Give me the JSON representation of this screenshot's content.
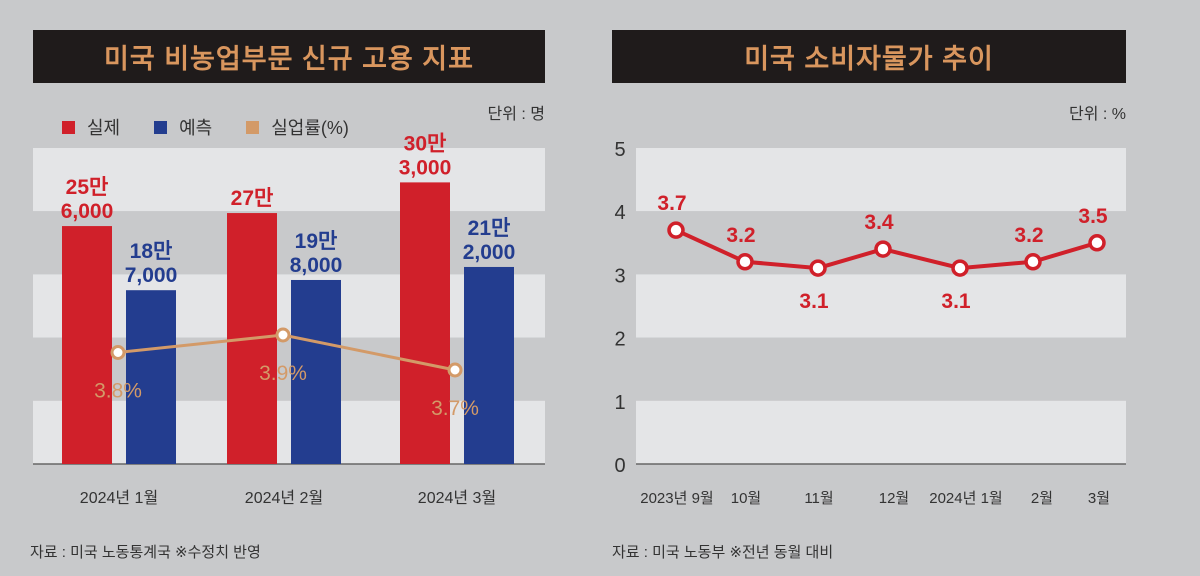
{
  "colors": {
    "background": "#c8c9cb",
    "band_light": "#e4e5e7",
    "title_bg": "#1f1b1b",
    "title_text": "#d9965e",
    "actual": "#d0202a",
    "forecast": "#233d8f",
    "unemployment": "#d39a68",
    "cpi": "#d0202a"
  },
  "chart_data": [
    {
      "type": "bar",
      "title": "미국 비농업부문 신규 고용 지표",
      "unit": "단위 : 명",
      "source": "자료 : 미국 노동통계국 ※수정치 반영",
      "categories": [
        "2024년 1월",
        "2024년 2월",
        "2024년 3월"
      ],
      "legend": [
        {
          "name": "실제",
          "color": "#d0202a"
        },
        {
          "name": "예측",
          "color": "#233d8f"
        },
        {
          "name": "실업률(%)",
          "color": "#d39a68"
        }
      ],
      "legend_placement": "top-left",
      "series": [
        {
          "name": "실제",
          "values": [
            256000,
            270000,
            303000
          ],
          "labels": [
            [
              "25만",
              "6,000"
            ],
            [
              "27만"
            ],
            [
              "30만",
              "3,000"
            ]
          ]
        },
        {
          "name": "예측",
          "values": [
            187000,
            198000,
            212000
          ],
          "labels": [
            [
              "18만",
              "7,000"
            ],
            [
              "19만",
              "8,000"
            ],
            [
              "21만",
              "2,000"
            ]
          ]
        }
      ],
      "line_series": {
        "name": "실업률(%)",
        "values": [
          3.8,
          3.9,
          3.7
        ],
        "labels": [
          "3.8%",
          "3.9%",
          "3.7%"
        ]
      },
      "ylim": [
        0,
        340000
      ],
      "grid": "alternating bands"
    },
    {
      "type": "line",
      "title": "미국 소비자물가 추이",
      "unit": "단위 : %",
      "source": "자료 : 미국 노동부 ※전년 동월 대비",
      "categories": [
        "2023년 9월",
        "10월",
        "11월",
        "12월",
        "2024년 1월",
        "2월",
        "3월"
      ],
      "values": [
        3.7,
        3.2,
        3.1,
        3.4,
        3.1,
        3.2,
        3.5
      ],
      "labels": [
        "3.7",
        "3.2",
        "3.1",
        "3.4",
        "3.1",
        "3.2",
        "3.5"
      ],
      "label_position": [
        "above",
        "above",
        "below",
        "above",
        "below",
        "above",
        "above"
      ],
      "yticks": [
        "0",
        "1",
        "2",
        "3",
        "4",
        "5"
      ],
      "ylim": [
        0,
        5
      ],
      "grid": "alternating bands"
    }
  ]
}
